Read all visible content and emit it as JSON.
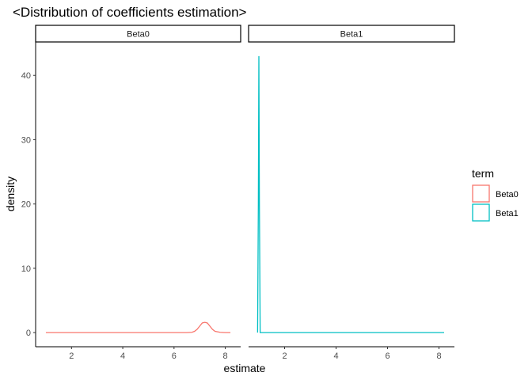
{
  "chart_data": {
    "type": "line",
    "title": "<Distribution of coefficients estimation>",
    "xlabel": "estimate",
    "ylabel": "density",
    "xlim": [
      0.6,
      8.6
    ],
    "ylim": [
      -2.2,
      45.2
    ],
    "x_ticks": [
      2,
      4,
      6,
      8
    ],
    "y_ticks": [
      0,
      10,
      20,
      30,
      40
    ],
    "grid": false,
    "legend": {
      "title": "term",
      "placement": "right",
      "entries": [
        {
          "label": "Beta0",
          "color": "#F8766D"
        },
        {
          "label": "Beta1",
          "color": "#00BFC4"
        }
      ]
    },
    "panels": [
      {
        "strip": "Beta0",
        "series": [
          {
            "name": "Beta0",
            "color": "#F8766D",
            "x": [
              1.0,
              6.5,
              6.7,
              6.8,
              6.9,
              7.0,
              7.1,
              7.2,
              7.3,
              7.4,
              7.5,
              7.6,
              7.8,
              8.0,
              8.2
            ],
            "y": [
              0,
              0,
              0.05,
              0.2,
              0.5,
              1.0,
              1.5,
              1.6,
              1.5,
              1.0,
              0.5,
              0.2,
              0.05,
              0,
              0
            ]
          }
        ]
      },
      {
        "strip": "Beta1",
        "series": [
          {
            "name": "Beta1",
            "color": "#00BFC4",
            "x": [
              0.95,
              0.98,
              1.0,
              1.02,
              1.05,
              8.2
            ],
            "y": [
              0,
              20,
              43,
              20,
              0,
              0
            ]
          }
        ]
      }
    ]
  }
}
